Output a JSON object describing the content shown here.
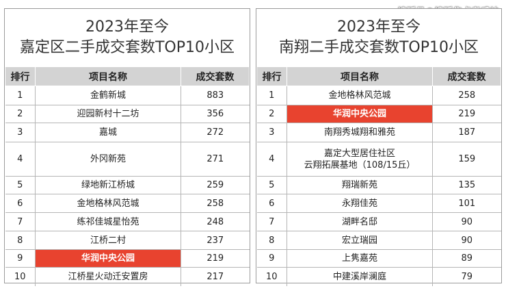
{
  "watermark": "搜狐号@搜狐焦点孝感站",
  "left": {
    "title_line1": "2023年至今",
    "title_line2": "嘉定区二手成交套数TOP10小区",
    "headers": [
      "排行",
      "项目名称",
      "成交套数"
    ],
    "rows": [
      {
        "rank": "1",
        "name": "金鹤新城",
        "count": "883"
      },
      {
        "rank": "2",
        "name": "迎园新村十二坊",
        "count": "356"
      },
      {
        "rank": "3",
        "name": "嘉城",
        "count": "272"
      },
      {
        "rank": "4",
        "name": "外冈新苑",
        "count": "271"
      },
      {
        "rank": "5",
        "name": "绿地新江桥城",
        "count": "259"
      },
      {
        "rank": "6",
        "name": "金地格林风范城",
        "count": "258"
      },
      {
        "rank": "7",
        "name": "练祁佳城星怡苑",
        "count": "248"
      },
      {
        "rank": "8",
        "name": "江桥二村",
        "count": "237"
      },
      {
        "rank": "9",
        "name": "华润中央公园",
        "count": "219"
      },
      {
        "rank": "10",
        "name": "江桥星火动迁安置房",
        "count": "217"
      }
    ]
  },
  "right": {
    "title_line1": "2023年至今",
    "title_line2": "南翔二手成交套数TOP10小区",
    "headers": [
      "排行",
      "项目名称",
      "成交套数"
    ],
    "rows": [
      {
        "rank": "1",
        "name": "金地格林风范城",
        "count": "258"
      },
      {
        "rank": "2",
        "name": "华润中央公园",
        "count": "219"
      },
      {
        "rank": "3",
        "name": "南翔秀城翔和雅苑",
        "count": "187"
      },
      {
        "rank": "4",
        "name": "嘉定大型居住社区",
        "name2": "云翔拓展基地（108/15丘）",
        "count": "159"
      },
      {
        "rank": "5",
        "name": "翔瑞新苑",
        "count": "135"
      },
      {
        "rank": "6",
        "name": "永翔佳苑",
        "count": "101"
      },
      {
        "rank": "7",
        "name": "湖畔名邸",
        "count": "90"
      },
      {
        "rank": "8",
        "name": "宏立瑞园",
        "count": "90"
      },
      {
        "rank": "9",
        "name": "上隽嘉苑",
        "count": "89"
      },
      {
        "rank": "10",
        "name": "中建溪岸澜庭",
        "count": "79"
      }
    ]
  }
}
